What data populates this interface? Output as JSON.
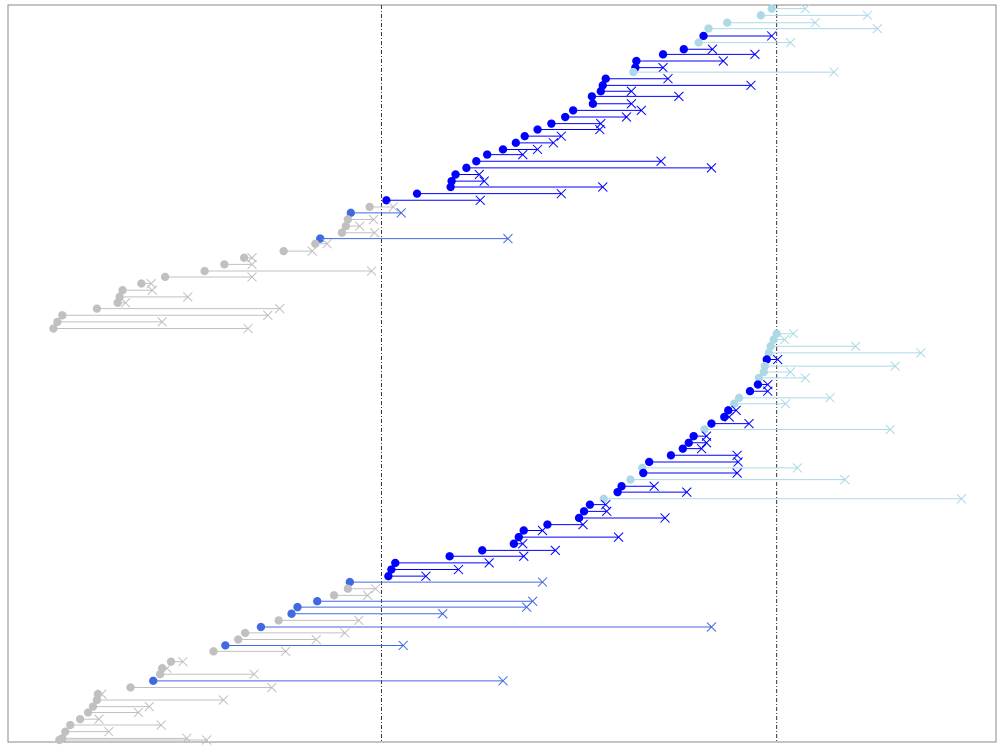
{
  "chart_data": {
    "type": "scatter",
    "title": "",
    "xlabel": "",
    "ylabel": "",
    "xlim": [
      0,
      100
    ],
    "ylim": [
      0,
      100
    ],
    "grid": false,
    "vertical_reference_lines": [
      37.8,
      77.8
    ],
    "series_colors": {
      "gray": "#c0c0c0",
      "royal": "#4169e1",
      "blue": "#0000ff",
      "light": "#add8e6"
    },
    "segments": [
      {
        "group": "upper",
        "y": 99.5,
        "start": 77.3,
        "end": 80.7,
        "color": "light"
      },
      {
        "group": "upper",
        "y": 98.6,
        "start": 76.2,
        "end": 87.0,
        "color": "light"
      },
      {
        "group": "upper",
        "y": 97.6,
        "start": 72.8,
        "end": 81.7,
        "color": "light"
      },
      {
        "group": "upper",
        "y": 96.8,
        "start": 70.9,
        "end": 88.0,
        "color": "light"
      },
      {
        "group": "upper",
        "y": 95.8,
        "start": 70.4,
        "end": 77.3,
        "color": "blue"
      },
      {
        "group": "upper",
        "y": 94.9,
        "start": 69.9,
        "end": 79.2,
        "color": "light"
      },
      {
        "group": "upper",
        "y": 94.0,
        "start": 68.4,
        "end": 71.3,
        "color": "blue"
      },
      {
        "group": "upper",
        "y": 93.3,
        "start": 66.3,
        "end": 75.6,
        "color": "blue"
      },
      {
        "group": "upper",
        "y": 92.4,
        "start": 63.6,
        "end": 72.4,
        "color": "blue"
      },
      {
        "group": "upper",
        "y": 91.5,
        "start": 63.5,
        "end": 66.3,
        "color": "blue"
      },
      {
        "group": "upper",
        "y": 90.9,
        "start": 63.3,
        "end": 83.6,
        "color": "light"
      },
      {
        "group": "upper",
        "y": 90.0,
        "start": 60.5,
        "end": 66.8,
        "color": "blue"
      },
      {
        "group": "upper",
        "y": 89.1,
        "start": 60.2,
        "end": 75.2,
        "color": "blue"
      },
      {
        "group": "upper",
        "y": 88.3,
        "start": 60.0,
        "end": 63.1,
        "color": "blue"
      },
      {
        "group": "upper",
        "y": 87.6,
        "start": 59.1,
        "end": 67.9,
        "color": "blue"
      },
      {
        "group": "upper",
        "y": 86.6,
        "start": 59.2,
        "end": 63.1,
        "color": "blue"
      },
      {
        "group": "upper",
        "y": 85.7,
        "start": 57.2,
        "end": 64.1,
        "color": "blue"
      },
      {
        "group": "upper",
        "y": 84.8,
        "start": 56.4,
        "end": 62.6,
        "color": "blue"
      },
      {
        "group": "upper",
        "y": 83.9,
        "start": 55.0,
        "end": 60.0,
        "color": "blue"
      },
      {
        "group": "upper",
        "y": 83.1,
        "start": 53.6,
        "end": 59.9,
        "color": "blue"
      },
      {
        "group": "upper",
        "y": 82.2,
        "start": 52.3,
        "end": 56.0,
        "color": "blue"
      },
      {
        "group": "upper",
        "y": 81.3,
        "start": 51.4,
        "end": 55.2,
        "color": "blue"
      },
      {
        "group": "upper",
        "y": 80.4,
        "start": 50.1,
        "end": 53.6,
        "color": "blue"
      },
      {
        "group": "upper",
        "y": 79.7,
        "start": 48.5,
        "end": 52.1,
        "color": "blue"
      },
      {
        "group": "upper",
        "y": 78.8,
        "start": 47.4,
        "end": 66.1,
        "color": "blue"
      },
      {
        "group": "upper",
        "y": 77.9,
        "start": 46.4,
        "end": 71.2,
        "color": "blue"
      },
      {
        "group": "upper",
        "y": 77.0,
        "start": 45.3,
        "end": 47.7,
        "color": "blue"
      },
      {
        "group": "upper",
        "y": 76.1,
        "start": 44.9,
        "end": 48.2,
        "color": "blue"
      },
      {
        "group": "upper",
        "y": 75.3,
        "start": 44.8,
        "end": 60.2,
        "color": "blue"
      },
      {
        "group": "upper",
        "y": 74.4,
        "start": 41.4,
        "end": 56.0,
        "color": "blue"
      },
      {
        "group": "upper",
        "y": 73.5,
        "start": 38.3,
        "end": 47.8,
        "color": "blue"
      },
      {
        "group": "upper",
        "y": 72.6,
        "start": 36.6,
        "end": 39.0,
        "color": "gray"
      },
      {
        "group": "upper",
        "y": 71.8,
        "start": 34.7,
        "end": 39.8,
        "color": "royal"
      },
      {
        "group": "upper",
        "y": 70.9,
        "start": 34.4,
        "end": 37.0,
        "color": "gray"
      },
      {
        "group": "upper",
        "y": 70.0,
        "start": 34.2,
        "end": 35.6,
        "color": "gray"
      },
      {
        "group": "upper",
        "y": 69.1,
        "start": 33.8,
        "end": 37.1,
        "color": "gray"
      },
      {
        "group": "upper",
        "y": 68.3,
        "start": 31.6,
        "end": 50.6,
        "color": "royal"
      },
      {
        "group": "upper",
        "y": 67.6,
        "start": 31.1,
        "end": 32.3,
        "color": "gray"
      },
      {
        "group": "upper",
        "y": 66.6,
        "start": 27.9,
        "end": 30.8,
        "color": "gray"
      },
      {
        "group": "upper",
        "y": 65.7,
        "start": 23.9,
        "end": 24.7,
        "color": "gray"
      },
      {
        "group": "upper",
        "y": 64.8,
        "start": 21.9,
        "end": 24.7,
        "color": "gray"
      },
      {
        "group": "upper",
        "y": 63.9,
        "start": 19.9,
        "end": 36.8,
        "color": "gray"
      },
      {
        "group": "upper",
        "y": 63.1,
        "start": 15.9,
        "end": 24.7,
        "color": "gray"
      },
      {
        "group": "upper",
        "y": 62.2,
        "start": 13.5,
        "end": 14.5,
        "color": "gray"
      },
      {
        "group": "upper",
        "y": 61.3,
        "start": 11.6,
        "end": 14.6,
        "color": "gray"
      },
      {
        "group": "upper",
        "y": 60.4,
        "start": 11.3,
        "end": 18.2,
        "color": "gray"
      },
      {
        "group": "upper",
        "y": 59.6,
        "start": 11.1,
        "end": 11.9,
        "color": "gray"
      },
      {
        "group": "upper",
        "y": 58.8,
        "start": 9.0,
        "end": 27.5,
        "color": "gray"
      },
      {
        "group": "upper",
        "y": 57.9,
        "start": 5.5,
        "end": 26.3,
        "color": "gray"
      },
      {
        "group": "upper",
        "y": 57.0,
        "start": 5.0,
        "end": 15.6,
        "color": "gray"
      },
      {
        "group": "upper",
        "y": 56.1,
        "start": 4.6,
        "end": 24.3,
        "color": "gray"
      },
      {
        "group": "lower",
        "y": 55.4,
        "start": 77.8,
        "end": 79.5,
        "color": "light"
      },
      {
        "group": "lower",
        "y": 54.6,
        "start": 77.5,
        "end": 78.6,
        "color": "light"
      },
      {
        "group": "lower",
        "y": 53.7,
        "start": 77.2,
        "end": 85.8,
        "color": "light"
      },
      {
        "group": "lower",
        "y": 52.8,
        "start": 77.0,
        "end": 92.4,
        "color": "light"
      },
      {
        "group": "lower",
        "y": 51.9,
        "start": 76.8,
        "end": 77.9,
        "color": "blue"
      },
      {
        "group": "lower",
        "y": 51.0,
        "start": 76.6,
        "end": 89.8,
        "color": "light"
      },
      {
        "group": "lower",
        "y": 50.2,
        "start": 76.5,
        "end": 79.2,
        "color": "light"
      },
      {
        "group": "lower",
        "y": 49.4,
        "start": 76.0,
        "end": 80.7,
        "color": "light"
      },
      {
        "group": "lower",
        "y": 48.5,
        "start": 75.9,
        "end": 76.9,
        "color": "blue"
      },
      {
        "group": "lower",
        "y": 47.6,
        "start": 75.1,
        "end": 76.9,
        "color": "blue"
      },
      {
        "group": "lower",
        "y": 46.7,
        "start": 74.0,
        "end": 83.2,
        "color": "light"
      },
      {
        "group": "lower",
        "y": 45.9,
        "start": 73.5,
        "end": 78.7,
        "color": "light"
      },
      {
        "group": "lower",
        "y": 45.0,
        "start": 72.9,
        "end": 73.7,
        "color": "blue"
      },
      {
        "group": "lower",
        "y": 44.1,
        "start": 72.5,
        "end": 73.0,
        "color": "blue"
      },
      {
        "group": "lower",
        "y": 43.2,
        "start": 71.2,
        "end": 75.0,
        "color": "blue"
      },
      {
        "group": "lower",
        "y": 42.4,
        "start": 70.5,
        "end": 89.3,
        "color": "light"
      },
      {
        "group": "lower",
        "y": 41.5,
        "start": 69.4,
        "end": 70.7,
        "color": "blue"
      },
      {
        "group": "lower",
        "y": 40.6,
        "start": 68.9,
        "end": 70.7,
        "color": "blue"
      },
      {
        "group": "lower",
        "y": 39.8,
        "start": 68.3,
        "end": 70.2,
        "color": "blue"
      },
      {
        "group": "lower",
        "y": 38.9,
        "start": 67.1,
        "end": 73.8,
        "color": "blue"
      },
      {
        "group": "lower",
        "y": 38.0,
        "start": 64.9,
        "end": 73.9,
        "color": "blue"
      },
      {
        "group": "lower",
        "y": 37.2,
        "start": 64.2,
        "end": 79.9,
        "color": "light"
      },
      {
        "group": "lower",
        "y": 36.5,
        "start": 64.3,
        "end": 73.8,
        "color": "blue"
      },
      {
        "group": "lower",
        "y": 35.6,
        "start": 63.0,
        "end": 84.7,
        "color": "light"
      },
      {
        "group": "lower",
        "y": 34.7,
        "start": 62.1,
        "end": 65.4,
        "color": "blue"
      },
      {
        "group": "lower",
        "y": 33.9,
        "start": 61.7,
        "end": 68.7,
        "color": "blue"
      },
      {
        "group": "lower",
        "y": 33.0,
        "start": 60.3,
        "end": 96.5,
        "color": "light"
      },
      {
        "group": "lower",
        "y": 32.2,
        "start": 58.9,
        "end": 60.5,
        "color": "blue"
      },
      {
        "group": "lower",
        "y": 31.3,
        "start": 58.3,
        "end": 60.6,
        "color": "blue"
      },
      {
        "group": "lower",
        "y": 30.4,
        "start": 57.8,
        "end": 66.5,
        "color": "blue"
      },
      {
        "group": "lower",
        "y": 29.5,
        "start": 54.6,
        "end": 58.2,
        "color": "blue"
      },
      {
        "group": "lower",
        "y": 28.7,
        "start": 52.2,
        "end": 54.1,
        "color": "blue"
      },
      {
        "group": "lower",
        "y": 27.8,
        "start": 51.7,
        "end": 61.8,
        "color": "blue"
      },
      {
        "group": "lower",
        "y": 26.9,
        "start": 51.2,
        "end": 52.1,
        "color": "blue"
      },
      {
        "group": "lower",
        "y": 26.0,
        "start": 48.0,
        "end": 55.4,
        "color": "blue"
      },
      {
        "group": "lower",
        "y": 25.2,
        "start": 44.7,
        "end": 52.2,
        "color": "blue"
      },
      {
        "group": "lower",
        "y": 24.3,
        "start": 39.2,
        "end": 48.7,
        "color": "blue"
      },
      {
        "group": "lower",
        "y": 23.4,
        "start": 38.8,
        "end": 45.6,
        "color": "blue"
      },
      {
        "group": "lower",
        "y": 22.5,
        "start": 38.5,
        "end": 42.3,
        "color": "blue"
      },
      {
        "group": "lower",
        "y": 21.7,
        "start": 34.6,
        "end": 54.1,
        "color": "royal"
      },
      {
        "group": "lower",
        "y": 20.8,
        "start": 34.4,
        "end": 37.2,
        "color": "gray"
      },
      {
        "group": "lower",
        "y": 19.9,
        "start": 33.0,
        "end": 36.4,
        "color": "gray"
      },
      {
        "group": "lower",
        "y": 19.1,
        "start": 31.3,
        "end": 53.1,
        "color": "royal"
      },
      {
        "group": "lower",
        "y": 18.3,
        "start": 29.3,
        "end": 52.5,
        "color": "royal"
      },
      {
        "group": "lower",
        "y": 17.4,
        "start": 28.7,
        "end": 44.0,
        "color": "royal"
      },
      {
        "group": "lower",
        "y": 16.5,
        "start": 27.4,
        "end": 35.5,
        "color": "gray"
      },
      {
        "group": "lower",
        "y": 15.6,
        "start": 25.6,
        "end": 71.2,
        "color": "royal"
      },
      {
        "group": "lower",
        "y": 14.8,
        "start": 24.0,
        "end": 34.1,
        "color": "gray"
      },
      {
        "group": "lower",
        "y": 13.9,
        "start": 23.3,
        "end": 31.2,
        "color": "gray"
      },
      {
        "group": "lower",
        "y": 13.1,
        "start": 22.0,
        "end": 40.0,
        "color": "royal"
      },
      {
        "group": "lower",
        "y": 12.3,
        "start": 20.8,
        "end": 28.1,
        "color": "gray"
      },
      {
        "group": "lower",
        "y": 10.9,
        "start": 16.5,
        "end": 17.7,
        "color": "gray"
      },
      {
        "group": "lower",
        "y": 10.0,
        "start": 15.6,
        "end": 16.1,
        "color": "gray"
      },
      {
        "group": "lower",
        "y": 9.2,
        "start": 15.4,
        "end": 24.9,
        "color": "gray"
      },
      {
        "group": "lower",
        "y": 8.3,
        "start": 14.7,
        "end": 50.1,
        "color": "royal"
      },
      {
        "group": "lower",
        "y": 7.4,
        "start": 12.4,
        "end": 26.7,
        "color": "gray"
      },
      {
        "group": "lower",
        "y": 6.5,
        "start": 9.1,
        "end": 9.5,
        "color": "gray"
      },
      {
        "group": "lower",
        "y": 5.7,
        "start": 9.0,
        "end": 21.8,
        "color": "gray"
      },
      {
        "group": "lower",
        "y": 4.8,
        "start": 8.6,
        "end": 14.3,
        "color": "gray"
      },
      {
        "group": "lower",
        "y": 4.0,
        "start": 8.1,
        "end": 13.2,
        "color": "gray"
      },
      {
        "group": "lower",
        "y": 3.1,
        "start": 7.3,
        "end": 9.2,
        "color": "gray"
      },
      {
        "group": "lower",
        "y": 2.3,
        "start": 6.3,
        "end": 15.5,
        "color": "gray"
      },
      {
        "group": "lower",
        "y": 1.4,
        "start": 5.8,
        "end": 10.2,
        "color": "gray"
      },
      {
        "group": "lower",
        "y": 0.5,
        "start": 5.5,
        "end": 18.1,
        "color": "gray"
      },
      {
        "group": "lower",
        "y": -0.2,
        "start": 5.2,
        "end": 20.1,
        "color": "gray"
      }
    ]
  }
}
